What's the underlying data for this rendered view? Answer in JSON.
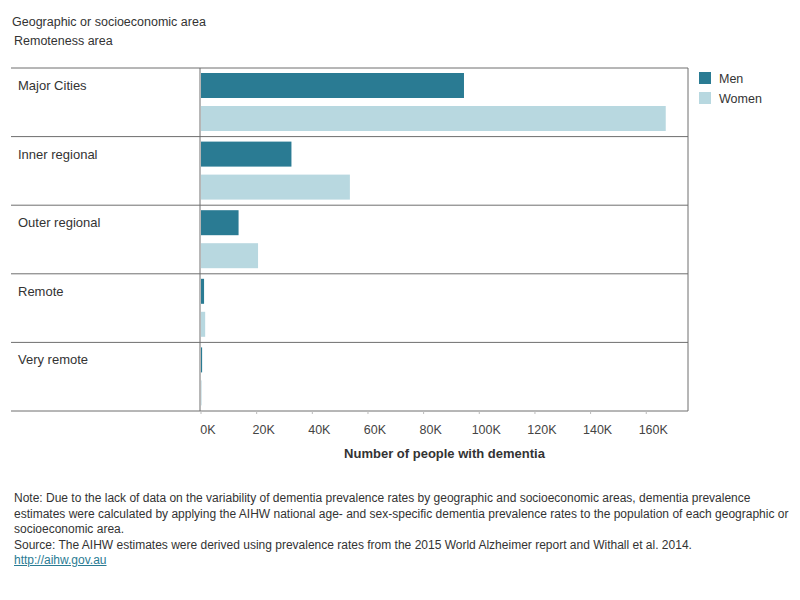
{
  "chart_data": {
    "type": "bar",
    "orientation": "horizontal",
    "title": "Geographic or socioeconomic area",
    "subtitle": "Remoteness area",
    "x_label": "Number of people with dementia",
    "categories": [
      "Major Cities",
      "Inner regional",
      "Outer regional",
      "Remote",
      "Very remote"
    ],
    "series": [
      {
        "name": "Men",
        "color": "#2a7b93",
        "values": [
          94500,
          32500,
          13500,
          1100,
          400
        ]
      },
      {
        "name": "Women",
        "color": "#b8d8e0",
        "values": [
          167000,
          53500,
          20500,
          1500,
          200
        ]
      }
    ],
    "xlim": [
      0,
      175000
    ],
    "xticks": [
      {
        "value": 0,
        "label": "0K"
      },
      {
        "value": 20000,
        "label": "20K"
      },
      {
        "value": 40000,
        "label": "40K"
      },
      {
        "value": 60000,
        "label": "60K"
      },
      {
        "value": 80000,
        "label": "80K"
      },
      {
        "value": 100000,
        "label": "100K"
      },
      {
        "value": 120000,
        "label": "120K"
      },
      {
        "value": 140000,
        "label": "140K"
      },
      {
        "value": 160000,
        "label": "160K"
      }
    ],
    "grid": false,
    "legend": "top-right",
    "note": "Note:  Due to the lack of data on the variability of dementia prevalence rates by geographic and socioeconomic areas, dementia prevalence estimates were calculated by applying the AIHW national age- and sex-specific dementia prevalence rates to the population of each geographic or socioeconomic area.",
    "source": "Source: The AIHW estimates were derived using prevalence rates from the 2015 World Alzheimer report and Withall et al. 2014.",
    "url": "http://aihw.gov.au"
  }
}
